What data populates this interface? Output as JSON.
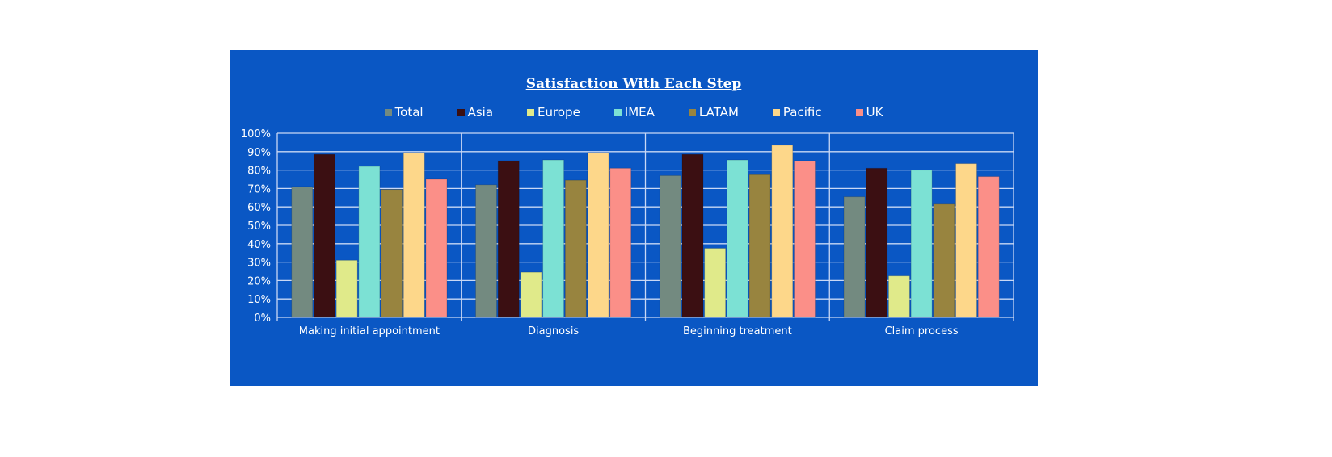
{
  "chart_data": {
    "type": "bar",
    "title": "Satisfaction With Each Step",
    "categories": [
      "Making initial appointment",
      "Diagnosis",
      "Beginning treatment",
      "Claim process"
    ],
    "series": [
      {
        "name": "Total",
        "color": "#738a80",
        "values": [
          71,
          72,
          77,
          65.5
        ]
      },
      {
        "name": "Asia",
        "color": "#3b0f12",
        "values": [
          88.5,
          85,
          88.5,
          81
        ]
      },
      {
        "name": "Europe",
        "color": "#e0ea8a",
        "values": [
          31,
          24.5,
          37.5,
          22.5
        ]
      },
      {
        "name": "IMEA",
        "color": "#7ce1d4",
        "values": [
          82,
          85.5,
          85.5,
          80
        ]
      },
      {
        "name": "LATAM",
        "color": "#98843f",
        "values": [
          69.5,
          74.5,
          77.5,
          61.5
        ]
      },
      {
        "name": "Pacific",
        "color": "#fdd78a",
        "values": [
          89.5,
          89.5,
          93.5,
          83.5
        ]
      },
      {
        "name": "UK",
        "color": "#fb8f88",
        "values": [
          75,
          81,
          85,
          76.5
        ]
      }
    ],
    "ylim": [
      0,
      100
    ],
    "yticks": [
      "0%",
      "10%",
      "20%",
      "30%",
      "40%",
      "50%",
      "60%",
      "70%",
      "80%",
      "90%",
      "100%"
    ],
    "grid": true,
    "legend": "top",
    "background": "#0a57c4"
  }
}
